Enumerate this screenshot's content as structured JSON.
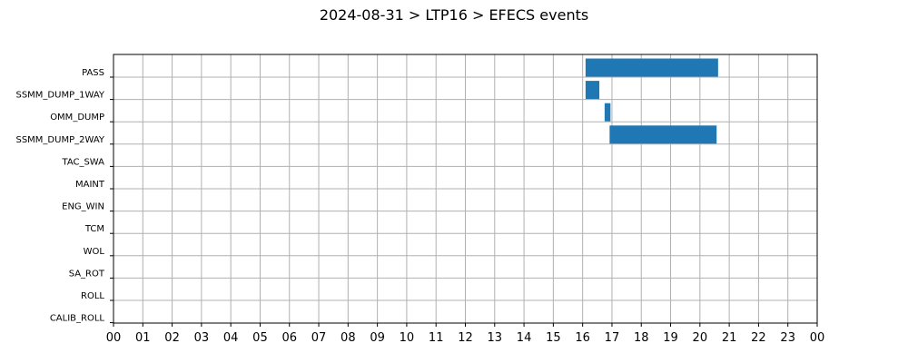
{
  "chart_data": {
    "type": "bar",
    "orientation": "horizontal-timeline",
    "title": "2024-08-31 > LTP16 > EFECS events",
    "xlabel": "",
    "ylabel": "",
    "xlim": [
      0,
      24
    ],
    "x_tick_labels": [
      "00",
      "01",
      "02",
      "03",
      "04",
      "05",
      "06",
      "07",
      "08",
      "09",
      "10",
      "11",
      "12",
      "13",
      "14",
      "15",
      "16",
      "17",
      "18",
      "19",
      "20",
      "21",
      "22",
      "23",
      "00"
    ],
    "categories": [
      "PASS",
      "SSMM_DUMP_1WAY",
      "OMM_DUMP",
      "SSMM_DUMP_2WAY",
      "TAC_SWA",
      "MAINT",
      "ENG_WIN",
      "TCM",
      "WOL",
      "SA_ROT",
      "ROLL",
      "CALIB_ROLL"
    ],
    "events": [
      {
        "category": "PASS",
        "start": 16.1,
        "end": 20.62
      },
      {
        "category": "SSMM_DUMP_1WAY",
        "start": 16.1,
        "end": 16.57
      },
      {
        "category": "OMM_DUMP",
        "start": 16.75,
        "end": 16.95
      },
      {
        "category": "SSMM_DUMP_2WAY",
        "start": 16.92,
        "end": 20.57
      }
    ],
    "grid": true,
    "bar_color": "#1f77b4"
  }
}
